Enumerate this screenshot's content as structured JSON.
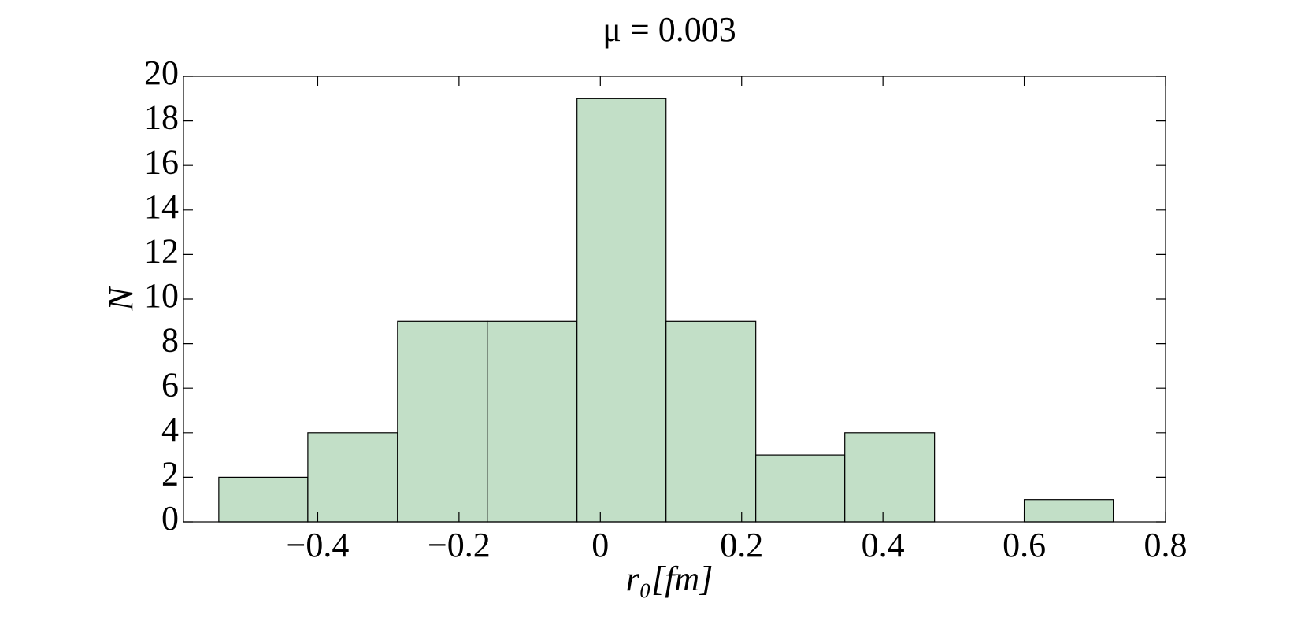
{
  "chart_data": {
    "type": "histogram",
    "title": "μ = 0.003",
    "x_label": "r₀[fm]",
    "y_label": "N",
    "bins": [
      -0.54,
      -0.414,
      -0.287,
      -0.16,
      -0.033,
      0.093,
      0.22,
      0.346,
      0.473,
      0.6,
      0.726
    ],
    "values": [
      2,
      4,
      9,
      9,
      19,
      9,
      3,
      4,
      0,
      1
    ],
    "color": "#c2dfc7",
    "xlim": [
      -0.59,
      0.8
    ],
    "xticks": [
      {
        "value": -0.4,
        "label": "−0.4"
      },
      {
        "value": -0.2,
        "label": "−0.2"
      },
      0,
      0.2,
      0.4,
      0.6,
      0.8
    ],
    "ylim": [
      0,
      20
    ],
    "yticks": [
      0,
      2,
      4,
      6,
      8,
      10,
      12,
      14,
      16,
      18,
      20
    ]
  }
}
